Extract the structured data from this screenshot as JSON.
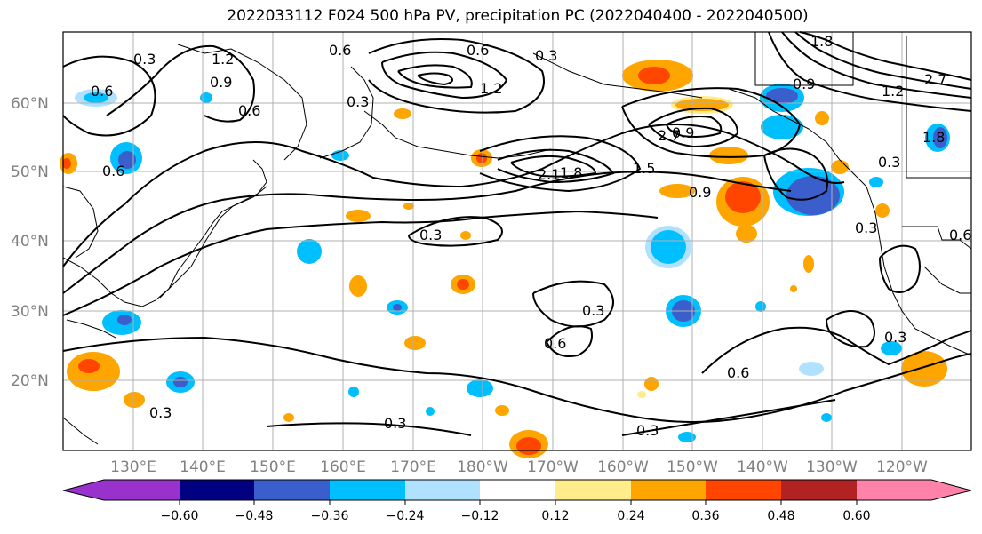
{
  "title": "2022033112 F024 500 hPa PV, precipitation PC (2022040400 - 2022040500)",
  "map": {
    "lat_labels": [
      "60°N",
      "50°N",
      "40°N",
      "30°N",
      "20°N"
    ],
    "lon_labels": [
      "130°E",
      "140°E",
      "150°E",
      "160°E",
      "170°E",
      "180°W",
      "170°W",
      "160°W",
      "150°W",
      "140°W",
      "130°W",
      "120°W"
    ],
    "contour_labels": [
      "0.3",
      "1.2",
      "0.9",
      "0.6",
      "0.6",
      "0.6",
      "0.3",
      "1.2",
      "0.3",
      "0.6",
      "0.6",
      "0.3",
      "0.9",
      "1.8",
      "2.1",
      "1.5",
      "0.9",
      "0.9",
      "1.8",
      "2.7",
      "0.3",
      "0.3",
      "0.6",
      "0.3",
      "0.3",
      "0.6",
      "0.3",
      "0.3",
      "0.6",
      "1.8",
      "2.7",
      "1.2",
      "0.3"
    ]
  },
  "colorbar": {
    "ticks": [
      "−0.60",
      "−0.48",
      "−0.36",
      "−0.24",
      "−0.12",
      "0.12",
      "0.24",
      "0.36",
      "0.48",
      "0.60"
    ],
    "colors": [
      "#9932CC",
      "#000080",
      "#3A5FCD",
      "#00BFFF",
      "#B0E2FF",
      "#FFFFFF",
      "#FFEC8B",
      "#FFA500",
      "#FF4500",
      "#B22222",
      "#FF82AB"
    ]
  },
  "shading_colors": {
    "neg_light": "#B0E2FF",
    "neg_mid": "#00BFFF",
    "neg_strong": "#3A5FCD",
    "pos_light": "#FFEC8B",
    "pos_mid": "#FFA500",
    "pos_strong": "#FF4500"
  }
}
